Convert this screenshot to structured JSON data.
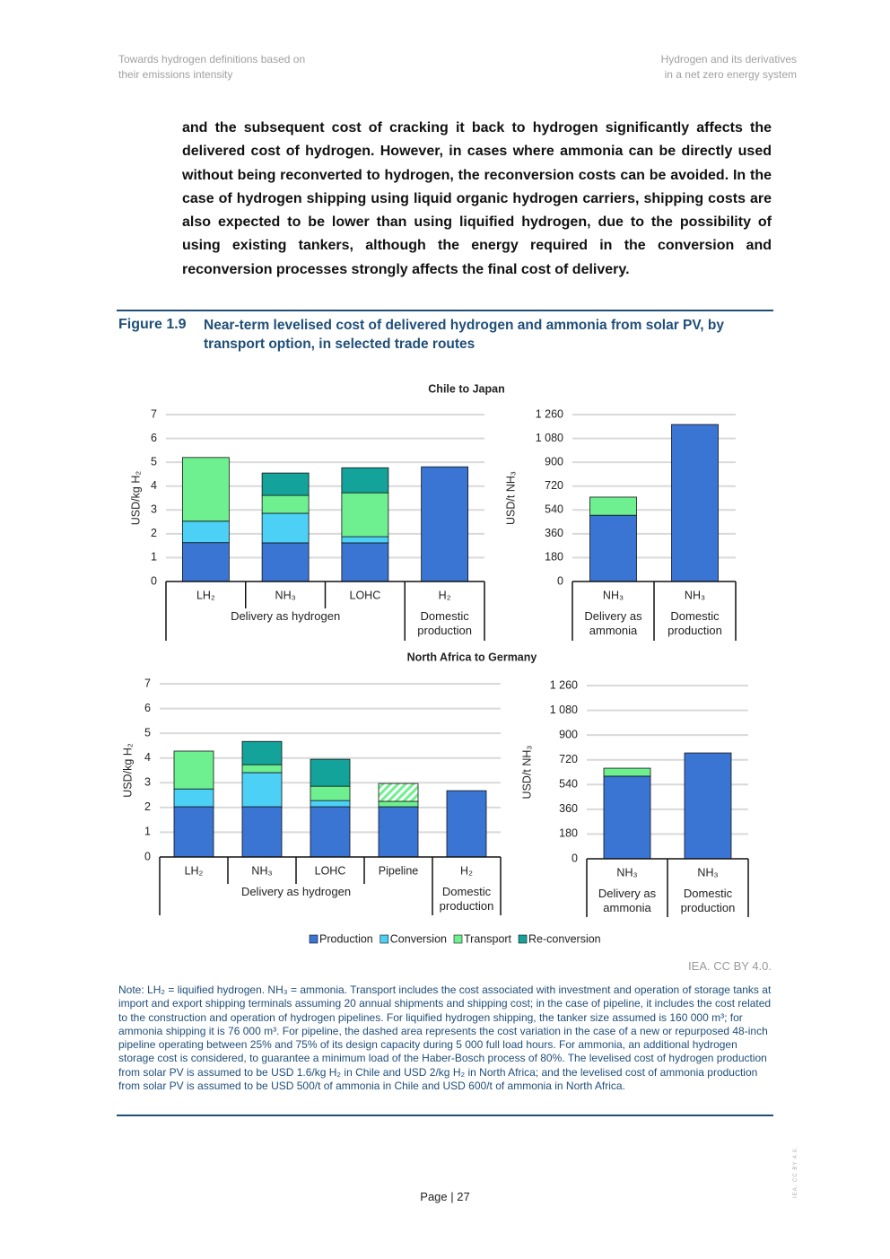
{
  "header": {
    "left": [
      "Towards hydrogen definitions based on",
      "their emissions intensity"
    ],
    "right": [
      "Hydrogen and its derivatives",
      "in a net zero energy system"
    ]
  },
  "body": "and the subsequent cost of cracking it back to hydrogen significantly affects the delivered cost of hydrogen. However, in cases where ammonia can be directly used without being reconverted to hydrogen, the reconversion costs can be avoided. In the case of hydrogen shipping using liquid organic hydrogen carriers, shipping costs are also expected to be lower than using liquified hydrogen, due to the possibility of using existing tankers, although the energy required in the conversion and reconversion processes strongly affects the final cost of delivery.",
  "figure": {
    "label": "Figure 1.9",
    "title": "Near-term levelised cost of delivered hydrogen and ammonia from solar PV, by transport option, in selected trade routes"
  },
  "chart_data": [
    {
      "type": "bar",
      "stacked": true,
      "title": "Chile to Japan",
      "y_label": "USD/kg H₂",
      "grid": true,
      "categories": [
        "LH₂",
        "NH₃",
        "LOHC",
        "H₂"
      ],
      "groups": [
        "Delivery as hydrogen",
        "Delivery as hydrogen",
        "Delivery as hydrogen",
        "Domestic production"
      ],
      "ylim": [
        0,
        7
      ],
      "yticks": [
        0,
        1,
        2,
        3,
        4,
        5,
        6,
        7
      ],
      "series": [
        {
          "name": "Production",
          "color": "#3a75d4",
          "values": [
            1.63,
            1.62,
            1.62,
            4.81
          ]
        },
        {
          "name": "Conversion",
          "color": "#4dd0f5",
          "values": [
            0.9,
            1.24,
            0.26,
            null
          ]
        },
        {
          "name": "Transport",
          "color": "#6ff090",
          "values": [
            2.67,
            0.75,
            1.84,
            null
          ]
        },
        {
          "name": "Re-conversion",
          "color": "#13a39a",
          "values": [
            null,
            0.94,
            1.05,
            null
          ]
        }
      ]
    },
    {
      "type": "bar",
      "stacked": true,
      "y_label": "USD/t NH₃",
      "grid": true,
      "categories": [
        "NH₃",
        "NH₃"
      ],
      "groups": [
        "Delivery as ammonia",
        "Domestic production"
      ],
      "ylim": [
        0,
        1260
      ],
      "yticks": [
        0,
        180,
        360,
        540,
        720,
        900,
        {
          "value": 1080,
          "label": "1 080"
        },
        {
          "value": 1260,
          "label": "1 260"
        }
      ],
      "series": [
        {
          "values": [
            500,
            1185
          ]
        },
        {
          "values": [
            null,
            null
          ]
        },
        {
          "values": [
            137,
            null
          ]
        },
        {
          "values": [
            null,
            null
          ]
        }
      ]
    },
    {
      "type": "bar",
      "stacked": true,
      "title": "North Africa to Germany",
      "y_label": "USD/kg H₂",
      "grid": true,
      "categories": [
        "LH₂",
        "NH₃",
        "LOHC",
        "Pipeline",
        "H₂"
      ],
      "groups": [
        "Delivery as hydrogen",
        "Delivery as hydrogen",
        "Delivery as hydrogen",
        "Delivery as hydrogen",
        "Domestic production"
      ],
      "ylim": [
        0,
        7
      ],
      "yticks": [
        0,
        1,
        2,
        3,
        4,
        5,
        6,
        7
      ],
      "series": [
        {
          "values": [
            2.03,
            2.03,
            2.03,
            2.03,
            2.68
          ]
        },
        {
          "values": [
            0.72,
            1.38,
            0.25,
            null,
            null
          ]
        },
        {
          "values": [
            1.53,
            0.32,
            0.58,
            0.22,
            null
          ]
        },
        {
          "values": [
            null,
            0.94,
            1.09,
            null,
            null
          ]
        },
        {
          "color": "#6ff090",
          "pattern": "hatch",
          "values": [
            null,
            null,
            null,
            0.72,
            null
          ]
        }
      ]
    },
    {
      "type": "bar",
      "stacked": true,
      "y_label": "USD/t NH₃",
      "grid": true,
      "categories": [
        "NH₃",
        "NH₃"
      ],
      "groups": [
        "Delivery as ammonia",
        "Domestic production"
      ],
      "ylim": [
        0,
        1260
      ],
      "yticks": [
        0,
        180,
        360,
        540,
        720,
        900,
        {
          "value": 1080,
          "label": "1 080"
        },
        {
          "value": 1260,
          "label": "1 260"
        }
      ],
      "series": [
        {
          "values": [
            601,
            770
          ]
        },
        {
          "values": [
            null,
            null
          ]
        },
        {
          "values": [
            58,
            null
          ]
        },
        {
          "values": [
            null,
            null
          ]
        }
      ]
    }
  ],
  "source": "IEA. CC BY 4.0.",
  "note": "Note: LH₂ = liquified hydrogen. NH₃ = ammonia. Transport includes the cost associated with investment and operation of storage tanks at import and export shipping terminals assuming 20 annual shipments and shipping cost; in the case of pipeline, it includes the cost related to the construction and operation of hydrogen pipelines. For liquified hydrogen shipping, the tanker size assumed is 160 000 m³; for ammonia shipping it is 76 000 m³. For pipeline, the dashed area represents the cost variation in the case of a new or repurposed 48-inch pipeline operating between 25% and 75% of its design capacity during 5 000 full load hours. For ammonia, an additional hydrogen storage cost is considered, to guarantee a minimum load of the Haber-Bosch process of 80%. The levelised cost of hydrogen production from solar PV is assumed to be USD 1.6/kg H₂ in Chile and USD 2/kg H₂ in North Africa; and the levelised cost of ammonia production from solar PV is assumed to be USD 500/t of ammonia in Chile and USD 600/t of ammonia in North Africa.",
  "footer": {
    "page": "Page | 27",
    "side": "IEA. CC BY 4.0."
  }
}
